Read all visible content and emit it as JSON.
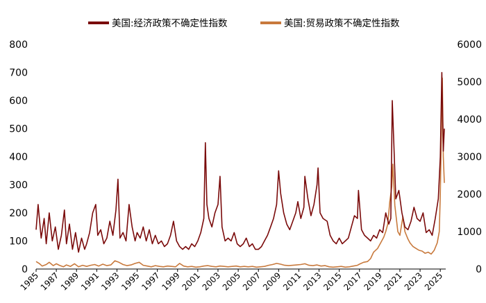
{
  "chart_data": {
    "type": "line",
    "title": "",
    "xlabel": "",
    "ylabel_left": "",
    "ylabel_right": "",
    "x_range": [
      1985,
      2025.4
    ],
    "x_ticks": [
      "1985",
      "1987",
      "1989",
      "1991",
      "1993",
      "1995",
      "1997",
      "1999",
      "2001",
      "2003",
      "2005",
      "2007",
      "2009",
      "2011",
      "2013",
      "2015",
      "2017",
      "2019",
      "2021",
      "2023",
      "2025"
    ],
    "y_left_range": [
      0,
      800
    ],
    "y_left_ticks": [
      "0",
      "100",
      "200",
      "300",
      "400",
      "500",
      "600",
      "700",
      "800"
    ],
    "y_right_range": [
      0,
      6000
    ],
    "y_right_ticks": [
      "0",
      "1000",
      "2000",
      "3000",
      "4000",
      "5000",
      "6000"
    ],
    "legend_position": "top",
    "grid": false,
    "series": [
      {
        "name": "美国:经济政策不确定性指数",
        "axis": "left",
        "color": "#7a0a0a",
        "points": [
          [
            1985.0,
            140
          ],
          [
            1985.2,
            230
          ],
          [
            1985.5,
            110
          ],
          [
            1985.8,
            180
          ],
          [
            1986.0,
            90
          ],
          [
            1986.3,
            200
          ],
          [
            1986.6,
            100
          ],
          [
            1986.9,
            150
          ],
          [
            1987.2,
            70
          ],
          [
            1987.5,
            120
          ],
          [
            1987.8,
            210
          ],
          [
            1988.0,
            90
          ],
          [
            1988.3,
            160
          ],
          [
            1988.6,
            70
          ],
          [
            1988.9,
            130
          ],
          [
            1989.2,
            60
          ],
          [
            1989.5,
            110
          ],
          [
            1989.8,
            70
          ],
          [
            1990.0,
            90
          ],
          [
            1990.3,
            130
          ],
          [
            1990.6,
            200
          ],
          [
            1990.9,
            230
          ],
          [
            1991.1,
            120
          ],
          [
            1991.4,
            140
          ],
          [
            1991.7,
            90
          ],
          [
            1992.0,
            110
          ],
          [
            1992.3,
            170
          ],
          [
            1992.6,
            120
          ],
          [
            1992.9,
            210
          ],
          [
            1993.1,
            320
          ],
          [
            1993.3,
            110
          ],
          [
            1993.6,
            130
          ],
          [
            1993.9,
            100
          ],
          [
            1994.2,
            230
          ],
          [
            1994.5,
            150
          ],
          [
            1994.8,
            100
          ],
          [
            1995.0,
            130
          ],
          [
            1995.3,
            110
          ],
          [
            1995.6,
            150
          ],
          [
            1995.9,
            100
          ],
          [
            1996.2,
            140
          ],
          [
            1996.5,
            90
          ],
          [
            1996.8,
            120
          ],
          [
            1997.1,
            90
          ],
          [
            1997.4,
            100
          ],
          [
            1997.7,
            80
          ],
          [
            1998.0,
            90
          ],
          [
            1998.3,
            120
          ],
          [
            1998.6,
            170
          ],
          [
            1998.9,
            100
          ],
          [
            1999.2,
            80
          ],
          [
            1999.5,
            70
          ],
          [
            1999.8,
            80
          ],
          [
            2000.1,
            70
          ],
          [
            2000.4,
            90
          ],
          [
            2000.7,
            80
          ],
          [
            2001.0,
            100
          ],
          [
            2001.3,
            130
          ],
          [
            2001.6,
            180
          ],
          [
            2001.75,
            450
          ],
          [
            2001.9,
            230
          ],
          [
            2002.1,
            180
          ],
          [
            2002.4,
            150
          ],
          [
            2002.7,
            200
          ],
          [
            2003.0,
            230
          ],
          [
            2003.2,
            330
          ],
          [
            2003.4,
            150
          ],
          [
            2003.7,
            100
          ],
          [
            2004.0,
            110
          ],
          [
            2004.3,
            100
          ],
          [
            2004.6,
            130
          ],
          [
            2004.9,
            90
          ],
          [
            2005.2,
            80
          ],
          [
            2005.5,
            90
          ],
          [
            2005.8,
            110
          ],
          [
            2006.1,
            80
          ],
          [
            2006.4,
            90
          ],
          [
            2006.7,
            70
          ],
          [
            2007.0,
            70
          ],
          [
            2007.3,
            80
          ],
          [
            2007.6,
            100
          ],
          [
            2007.9,
            120
          ],
          [
            2008.2,
            150
          ],
          [
            2008.5,
            180
          ],
          [
            2008.8,
            230
          ],
          [
            2009.0,
            350
          ],
          [
            2009.2,
            270
          ],
          [
            2009.5,
            200
          ],
          [
            2009.8,
            160
          ],
          [
            2010.1,
            140
          ],
          [
            2010.4,
            170
          ],
          [
            2010.7,
            200
          ],
          [
            2010.9,
            240
          ],
          [
            2011.2,
            180
          ],
          [
            2011.5,
            220
          ],
          [
            2011.6,
            330
          ],
          [
            2011.9,
            250
          ],
          [
            2012.2,
            190
          ],
          [
            2012.5,
            230
          ],
          [
            2012.8,
            300
          ],
          [
            2012.9,
            360
          ],
          [
            2013.1,
            200
          ],
          [
            2013.4,
            180
          ],
          [
            2013.8,
            170
          ],
          [
            2014.1,
            120
          ],
          [
            2014.4,
            100
          ],
          [
            2014.7,
            90
          ],
          [
            2015.0,
            110
          ],
          [
            2015.3,
            90
          ],
          [
            2015.6,
            100
          ],
          [
            2015.9,
            110
          ],
          [
            2016.2,
            150
          ],
          [
            2016.5,
            190
          ],
          [
            2016.8,
            180
          ],
          [
            2016.9,
            280
          ],
          [
            2017.2,
            140
          ],
          [
            2017.5,
            120
          ],
          [
            2017.8,
            110
          ],
          [
            2018.1,
            100
          ],
          [
            2018.4,
            120
          ],
          [
            2018.7,
            110
          ],
          [
            2019.0,
            140
          ],
          [
            2019.3,
            130
          ],
          [
            2019.6,
            200
          ],
          [
            2019.9,
            160
          ],
          [
            2020.1,
            180
          ],
          [
            2020.25,
            600
          ],
          [
            2020.4,
            450
          ],
          [
            2020.6,
            250
          ],
          [
            2020.9,
            280
          ],
          [
            2021.2,
            200
          ],
          [
            2021.5,
            150
          ],
          [
            2021.8,
            140
          ],
          [
            2022.1,
            170
          ],
          [
            2022.4,
            220
          ],
          [
            2022.7,
            180
          ],
          [
            2023.0,
            170
          ],
          [
            2023.3,
            200
          ],
          [
            2023.6,
            130
          ],
          [
            2023.9,
            140
          ],
          [
            2024.2,
            120
          ],
          [
            2024.5,
            180
          ],
          [
            2024.8,
            250
          ],
          [
            2025.0,
            400
          ],
          [
            2025.15,
            700
          ],
          [
            2025.3,
            420
          ],
          [
            2025.4,
            500
          ]
        ]
      },
      {
        "name": "美国:贸易政策不确定性指数",
        "axis": "right",
        "color": "#c8793c",
        "points": [
          [
            1985.0,
            200
          ],
          [
            1985.3,
            150
          ],
          [
            1985.6,
            80
          ],
          [
            1986.0,
            120
          ],
          [
            1986.3,
            180
          ],
          [
            1986.7,
            90
          ],
          [
            1987.0,
            140
          ],
          [
            1987.3,
            100
          ],
          [
            1987.7,
            60
          ],
          [
            1988.0,
            110
          ],
          [
            1988.4,
            70
          ],
          [
            1988.8,
            140
          ],
          [
            1989.2,
            60
          ],
          [
            1989.6,
            100
          ],
          [
            1990.0,
            70
          ],
          [
            1990.4,
            100
          ],
          [
            1990.8,
            120
          ],
          [
            1991.2,
            80
          ],
          [
            1991.6,
            130
          ],
          [
            1992.0,
            90
          ],
          [
            1992.4,
            110
          ],
          [
            1992.8,
            220
          ],
          [
            1993.2,
            180
          ],
          [
            1993.6,
            120
          ],
          [
            1994.0,
            90
          ],
          [
            1994.4,
            110
          ],
          [
            1994.8,
            150
          ],
          [
            1995.2,
            180
          ],
          [
            1995.6,
            100
          ],
          [
            1996.0,
            80
          ],
          [
            1996.4,
            60
          ],
          [
            1996.8,
            90
          ],
          [
            1997.2,
            70
          ],
          [
            1997.6,
            60
          ],
          [
            1998.0,
            80
          ],
          [
            1998.4,
            70
          ],
          [
            1998.8,
            60
          ],
          [
            1999.2,
            150
          ],
          [
            1999.6,
            80
          ],
          [
            2000.0,
            60
          ],
          [
            2000.4,
            70
          ],
          [
            2000.8,
            50
          ],
          [
            2001.2,
            60
          ],
          [
            2001.6,
            80
          ],
          [
            2002.0,
            90
          ],
          [
            2002.4,
            70
          ],
          [
            2002.8,
            60
          ],
          [
            2003.2,
            80
          ],
          [
            2003.6,
            70
          ],
          [
            2004.0,
            60
          ],
          [
            2004.4,
            70
          ],
          [
            2004.8,
            80
          ],
          [
            2005.2,
            60
          ],
          [
            2005.6,
            70
          ],
          [
            2006.0,
            60
          ],
          [
            2006.4,
            70
          ],
          [
            2006.8,
            50
          ],
          [
            2007.2,
            60
          ],
          [
            2007.6,
            70
          ],
          [
            2008.0,
            100
          ],
          [
            2008.4,
            120
          ],
          [
            2008.8,
            150
          ],
          [
            2009.2,
            130
          ],
          [
            2009.6,
            100
          ],
          [
            2010.0,
            90
          ],
          [
            2010.4,
            100
          ],
          [
            2010.8,
            110
          ],
          [
            2011.2,
            120
          ],
          [
            2011.6,
            140
          ],
          [
            2012.0,
            100
          ],
          [
            2012.4,
            90
          ],
          [
            2012.8,
            110
          ],
          [
            2013.2,
            80
          ],
          [
            2013.6,
            90
          ],
          [
            2014.0,
            60
          ],
          [
            2014.4,
            50
          ],
          [
            2014.8,
            60
          ],
          [
            2015.2,
            70
          ],
          [
            2015.6,
            50
          ],
          [
            2016.0,
            60
          ],
          [
            2016.4,
            80
          ],
          [
            2016.8,
            100
          ],
          [
            2017.0,
            130
          ],
          [
            2017.4,
            180
          ],
          [
            2017.8,
            200
          ],
          [
            2018.1,
            280
          ],
          [
            2018.4,
            450
          ],
          [
            2018.8,
            550
          ],
          [
            2019.1,
            700
          ],
          [
            2019.4,
            850
          ],
          [
            2019.6,
            1000
          ],
          [
            2019.8,
            1200
          ],
          [
            2019.9,
            1500
          ],
          [
            2020.0,
            1800
          ],
          [
            2020.2,
            2200
          ],
          [
            2020.3,
            2800
          ],
          [
            2020.5,
            1700
          ],
          [
            2020.8,
            1000
          ],
          [
            2021.0,
            900
          ],
          [
            2021.3,
            1400
          ],
          [
            2021.5,
            1000
          ],
          [
            2021.8,
            800
          ],
          [
            2022.0,
            700
          ],
          [
            2022.3,
            600
          ],
          [
            2022.6,
            550
          ],
          [
            2022.9,
            500
          ],
          [
            2023.2,
            480
          ],
          [
            2023.5,
            420
          ],
          [
            2023.8,
            450
          ],
          [
            2024.1,
            400
          ],
          [
            2024.4,
            500
          ],
          [
            2024.7,
            700
          ],
          [
            2024.9,
            1000
          ],
          [
            2025.0,
            2000
          ],
          [
            2025.1,
            3500
          ],
          [
            2025.2,
            5100
          ],
          [
            2025.3,
            3000
          ],
          [
            2025.4,
            2300
          ]
        ]
      }
    ]
  }
}
